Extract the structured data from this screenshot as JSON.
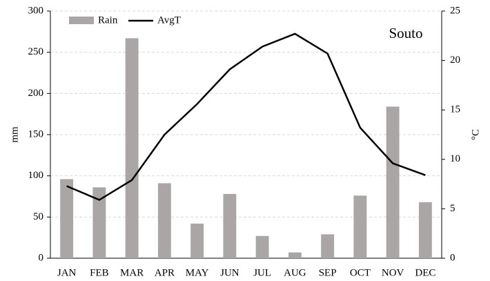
{
  "chart_data": {
    "type": "combo",
    "annotation": "Souto",
    "y_label": "mm",
    "y2_label": "°C",
    "categories": [
      "JAN",
      "FEB",
      "MAR",
      "APR",
      "MAY",
      "JUN",
      "JUL",
      "AUG",
      "SEP",
      "OCT",
      "NOV",
      "DEC"
    ],
    "series": [
      {
        "name": "Rain",
        "type": "bar",
        "color": "#aaa6a6",
        "values": [
          96,
          86,
          267,
          91,
          42,
          78,
          27,
          7,
          29,
          76,
          184,
          68
        ]
      },
      {
        "name": "AvgT",
        "type": "line",
        "axis": "y2",
        "color": "#000000",
        "values": [
          7.3,
          5.9,
          7.9,
          12.5,
          15.6,
          19.1,
          21.4,
          22.7,
          20.7,
          13.2,
          9.6,
          8.4
        ]
      }
    ],
    "ylim": [
      0,
      300
    ],
    "yticks": [
      0,
      50,
      100,
      150,
      200,
      250,
      300
    ],
    "y2lim": [
      0,
      25
    ],
    "y2ticks": [
      0,
      5,
      10,
      15,
      20,
      25
    ],
    "grid": true,
    "legend": "top-left"
  }
}
